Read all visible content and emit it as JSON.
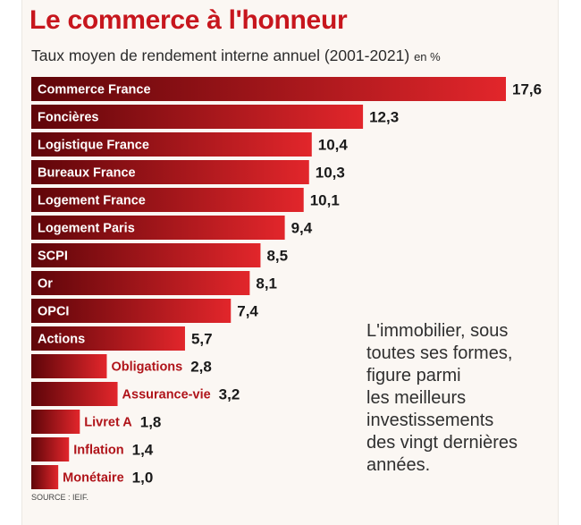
{
  "header": {
    "title": "Le commerce à l'honneur",
    "subtitle": "Taux moyen de rendement interne annuel (2001-2021)",
    "unit": "en %"
  },
  "note": "L'immobilier, sous\ntoutes ses formes,\nfigure parmi\nles meilleurs\ninvestissements\ndes vingt dernières\nannées.",
  "source": "SOURCE : IEIF.",
  "colors": {
    "title": "#c7161d",
    "bar_dark": "#5e0509",
    "bar_light": "#e2262b",
    "value_text": "#1a1a1a",
    "label_outside": "#b0141a"
  },
  "chart_data": {
    "type": "bar",
    "orientation": "horizontal",
    "title": "Le commerce à l'honneur",
    "subtitle": "Taux moyen de rendement interne annuel (2001-2021) en %",
    "categories": [
      "Commerce France",
      "Foncières",
      "Logistique France",
      "Bureaux France",
      "Logement France",
      "Logement Paris",
      "SCPI",
      "Or",
      "OPCI",
      "Actions",
      "Obligations",
      "Assurance-vie",
      "Livret A",
      "Inflation",
      "Monétaire"
    ],
    "values": [
      17.6,
      12.3,
      10.4,
      10.3,
      10.1,
      9.4,
      8.5,
      8.1,
      7.4,
      5.7,
      2.8,
      3.2,
      1.8,
      1.4,
      1.0
    ],
    "value_labels": [
      "17,6",
      "12,3",
      "10,4",
      "10,3",
      "10,1",
      "9,4",
      "8,5",
      "8,1",
      "7,4",
      "5,7",
      "2,8",
      "3,2",
      "1,8",
      "1,4",
      "1,0"
    ],
    "label_placement": [
      "inside",
      "inside",
      "inside",
      "inside",
      "inside",
      "inside",
      "inside",
      "inside",
      "inside",
      "inside",
      "outside",
      "outside",
      "outside",
      "outside",
      "outside"
    ],
    "xlim": [
      0,
      17.6
    ],
    "grid": false,
    "legend": "none"
  }
}
